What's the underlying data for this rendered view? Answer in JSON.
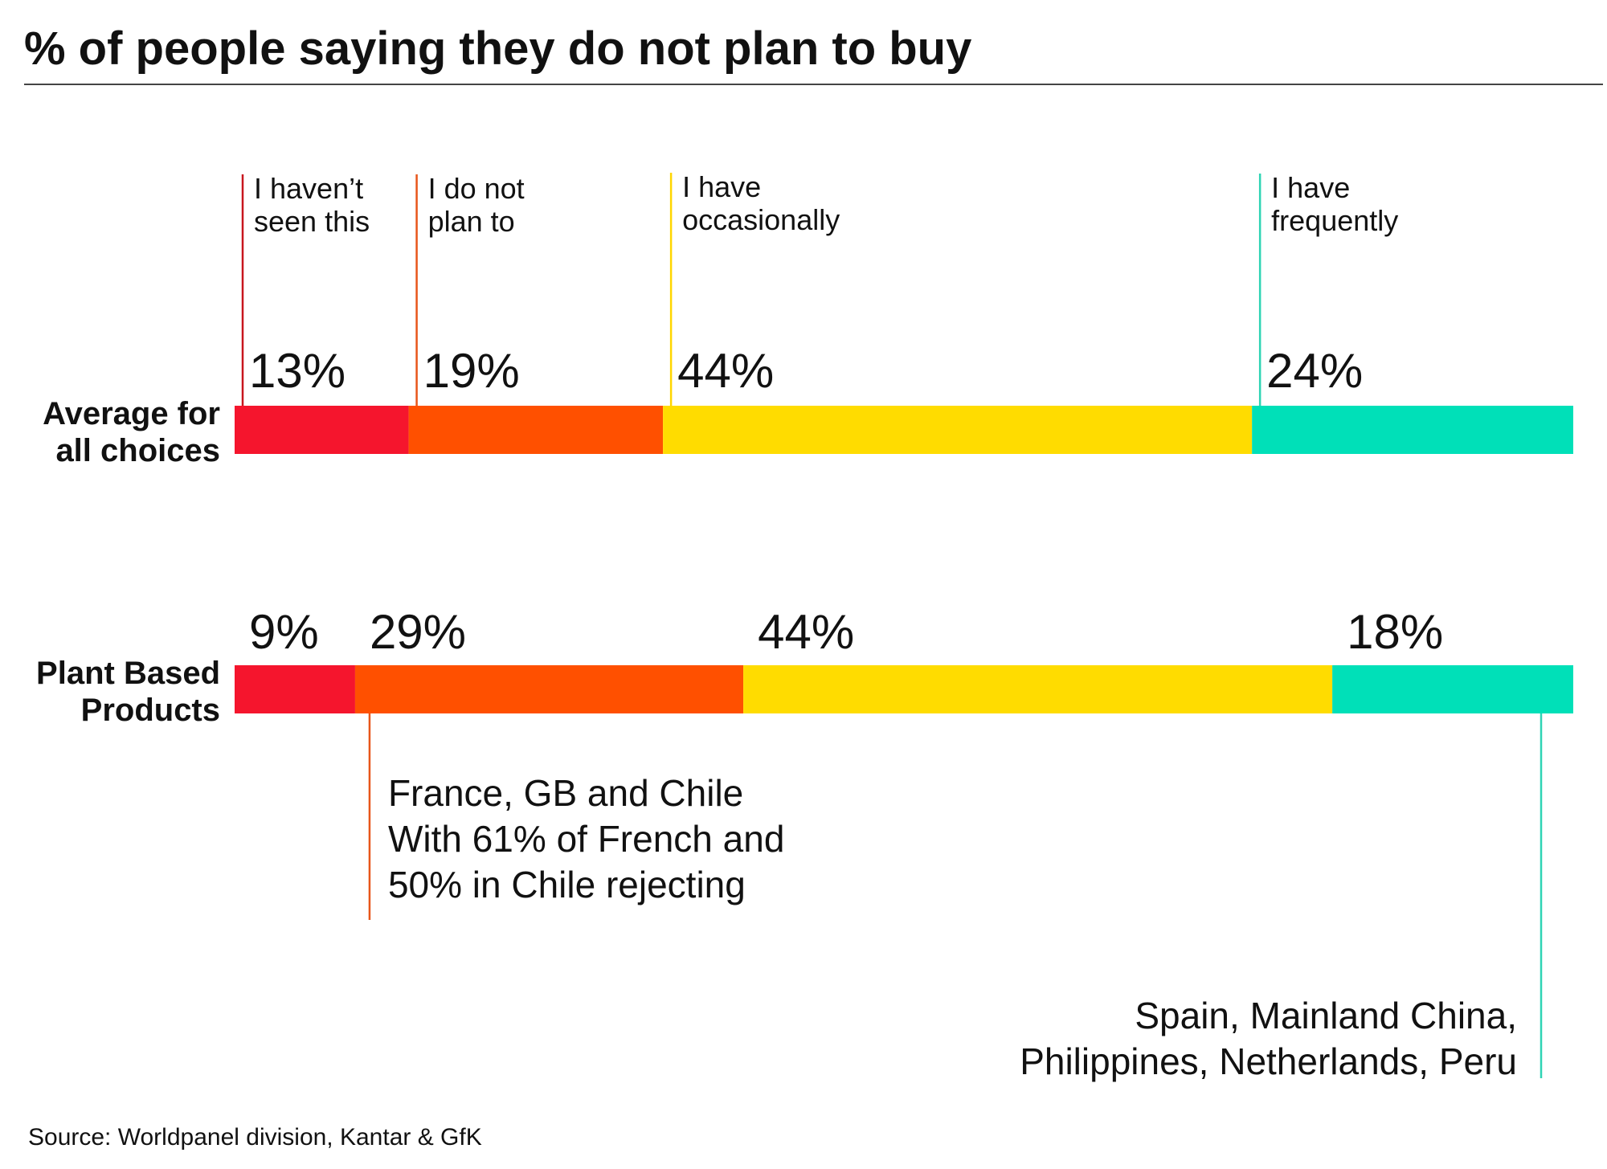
{
  "title": "% of people saying they do not plan to buy",
  "source": "Source: Worldpanel division, Kantar & GfK",
  "chart_data": {
    "type": "bar",
    "orientation": "horizontal",
    "stacked": true,
    "title": "% of people saying they do not plan to buy",
    "categories": [
      "Average for all choices",
      "Plant Based Products"
    ],
    "series": [
      {
        "name": "I haven’t seen this",
        "color": "#f5152d",
        "values": [
          13,
          9
        ]
      },
      {
        "name": "I do not plan to",
        "color": "#ff5000",
        "values": [
          19,
          29
        ]
      },
      {
        "name": "I have occasionally",
        "color": "#ffdc00",
        "values": [
          44,
          44
        ]
      },
      {
        "name": "I have frequently",
        "color": "#00e0b8",
        "values": [
          24,
          18
        ]
      }
    ],
    "xlim": [
      0,
      100
    ],
    "grid": false,
    "legend_position": "top"
  },
  "rows": [
    {
      "label_lines": [
        "Average for",
        "all choices"
      ],
      "pct_labels": [
        "13%",
        "19%",
        "44%",
        "24%"
      ]
    },
    {
      "label_lines": [
        "Plant Based",
        "Products"
      ],
      "pct_labels": [
        "9%",
        "29%",
        "44%",
        "18%"
      ]
    }
  ],
  "legend": [
    {
      "lines": [
        "I haven’t",
        "seen this"
      ],
      "color": "#c8161e"
    },
    {
      "lines": [
        "I do not",
        "plan to"
      ],
      "color": "#e8561a"
    },
    {
      "lines": [
        "I have",
        "occasionally"
      ],
      "color": "#ffd600"
    },
    {
      "lines": [
        "I have",
        "frequently"
      ],
      "color": "#2fd4b4"
    }
  ],
  "annotations": [
    {
      "lines": [
        "France, GB and Chile",
        "With 61% of French and",
        "50% in Chile rejecting"
      ],
      "color": "#e8561a"
    },
    {
      "lines": [
        "Spain, Mainland China,",
        "Philippines, Netherlands, Peru"
      ],
      "color": "#2fd4b4"
    }
  ]
}
